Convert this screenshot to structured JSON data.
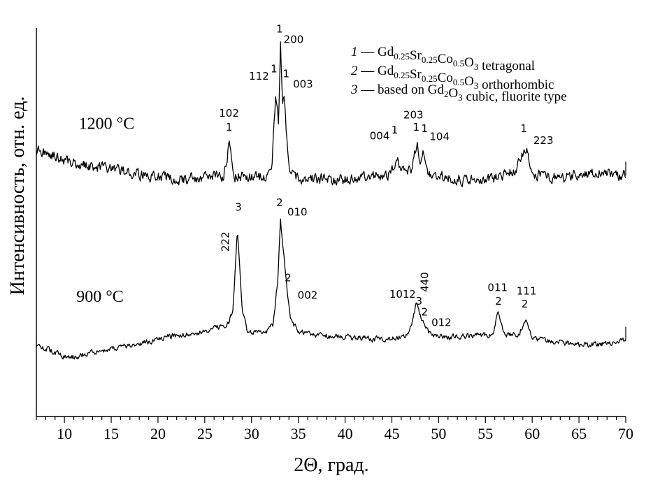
{
  "chart_data": {
    "type": "line",
    "xlabel": "2Θ, град.",
    "ylabel": "Интенсивность, отн. ед.",
    "xlim": [
      7,
      70
    ],
    "ylim": [
      0,
      100
    ],
    "x_ticks": [
      10,
      15,
      20,
      25,
      30,
      35,
      40,
      45,
      50,
      55,
      60,
      65,
      70
    ],
    "grid": false,
    "legend_position": "top-right",
    "legend": [
      {
        "num": "1",
        "dash": "—",
        "formula": [
          "Gd",
          "0.25",
          "Sr",
          "0.25",
          "Co",
          "0.5",
          "O",
          "3"
        ],
        "suffix": "tetragonal"
      },
      {
        "num": "2",
        "dash": "—",
        "formula": [
          "Gd",
          "0.25",
          "Sr",
          "0.25",
          "Co",
          "0.5",
          "O",
          "3"
        ],
        "suffix": "orthorhombic"
      },
      {
        "num": "3",
        "dash": "—",
        "prefix": "based on",
        "formula": [
          "Gd",
          "2",
          "O",
          "3"
        ],
        "suffix": "cubic, fluorite type"
      }
    ],
    "series": [
      {
        "name": "1200 °C",
        "baseline": 61.5,
        "noise_amplitude": 2.2,
        "x": [
          7,
          8.5,
          10,
          12.5,
          15,
          17.5,
          20,
          22.5,
          25,
          27,
          27.6,
          28.2,
          30,
          31.5,
          32.2,
          32.6,
          32.9,
          33.1,
          33.3,
          33.5,
          33.7,
          34,
          34.6,
          36,
          38,
          40,
          42,
          44,
          45,
          45.5,
          46,
          47,
          47.7,
          48,
          48.3,
          48.7,
          49.5,
          51,
          53,
          55,
          57,
          58.2,
          58.8,
          59.4,
          60,
          61,
          63,
          65,
          67,
          68,
          69,
          70
        ],
        "y": [
          68.5,
          67.5,
          66,
          64.5,
          63.5,
          62.5,
          61.5,
          61,
          61.5,
          62,
          70,
          62,
          61.5,
          62,
          65,
          83,
          75,
          95.5,
          80,
          84,
          73,
          64,
          61.5,
          61,
          61,
          61,
          61.5,
          62,
          63,
          67,
          63,
          63,
          70,
          64,
          68.5,
          63,
          62,
          61.5,
          61,
          61,
          62,
          63.5,
          67,
          69,
          62.5,
          62,
          61.5,
          62,
          63,
          62.5,
          62,
          62
        ]
      },
      {
        "name": "900 °C",
        "baseline": 18.5,
        "noise_amplitude": 1.1,
        "x": [
          7,
          9,
          10.5,
          12,
          15,
          18,
          20,
          22,
          24,
          26,
          27.5,
          28,
          28.5,
          29,
          29.6,
          30.5,
          31.5,
          32.3,
          32.8,
          33.1,
          33.5,
          33.8,
          34.2,
          35,
          37,
          40,
          43,
          45,
          46.5,
          47.3,
          47.6,
          48,
          48.3,
          48.6,
          49,
          50,
          52,
          54,
          55.8,
          56.4,
          57,
          58.5,
          59.3,
          60,
          61,
          63,
          65,
          67,
          69,
          70
        ],
        "y": [
          18.5,
          16.5,
          15,
          16,
          17.5,
          18.5,
          20,
          21,
          21.5,
          22.5,
          24,
          27,
          48,
          27,
          21.5,
          21.5,
          21.5,
          23.5,
          35,
          50,
          40,
          32,
          25,
          22,
          21,
          20.5,
          20,
          20,
          20.5,
          25,
          29.5,
          26,
          24.5,
          23,
          21.5,
          20.5,
          20.5,
          21,
          21,
          27,
          21,
          21,
          25,
          20,
          19.5,
          19,
          18.5,
          18.5,
          19,
          19.5
        ]
      }
    ],
    "annotations": [
      {
        "text": "1200 °C",
        "x": 14.5,
        "y": 74
      },
      {
        "text": "900 °C",
        "x": 13.8,
        "y": 29.5
      },
      {
        "text": "102",
        "x": 27.6,
        "y": 77.2
      },
      {
        "text": "1",
        "x": 27.6,
        "y": 73.6
      },
      {
        "text": "112",
        "x": 30.8,
        "y": 86.7
      },
      {
        "text": "1",
        "x": 32.4,
        "y": 88.6
      },
      {
        "text": "1",
        "x": 33.0,
        "y": 98.8
      },
      {
        "text": "200",
        "x": 34.5,
        "y": 96.1
      },
      {
        "text": "1",
        "x": 33.7,
        "y": 87.3
      },
      {
        "text": "003",
        "x": 35.5,
        "y": 84.6
      },
      {
        "text": "004",
        "x": 43.7,
        "y": 71.3
      },
      {
        "text": "1",
        "x": 45.3,
        "y": 72.8
      },
      {
        "text": "203",
        "x": 47.3,
        "y": 76.7
      },
      {
        "text": "1",
        "x": 47.6,
        "y": 73.6
      },
      {
        "text": "1",
        "x": 48.5,
        "y": 73.2
      },
      {
        "text": "104",
        "x": 50.1,
        "y": 71.1
      },
      {
        "text": "1",
        "x": 59.1,
        "y": 73.2
      },
      {
        "text": "223",
        "x": 61.2,
        "y": 70.1
      },
      {
        "text": "3",
        "x": 28.6,
        "y": 53.0
      },
      {
        "text": "222",
        "x": 27.6,
        "y": 45.0
      },
      {
        "text": "2",
        "x": 33.0,
        "y": 54.1
      },
      {
        "text": "010",
        "x": 34.9,
        "y": 51.7
      },
      {
        "text": "2",
        "x": 33.9,
        "y": 34.8
      },
      {
        "text": "002",
        "x": 36.0,
        "y": 30.3
      },
      {
        "text": "101",
        "x": 45.8,
        "y": 30.6
      },
      {
        "text": "2",
        "x": 47.2,
        "y": 30.6
      },
      {
        "text": "3",
        "x": 47.9,
        "y": 28.8
      },
      {
        "text": "440",
        "x": 48.9,
        "y": 34.6
      },
      {
        "text": "2",
        "x": 48.5,
        "y": 26.0
      },
      {
        "text": "012",
        "x": 50.3,
        "y": 23.3
      },
      {
        "text": "011",
        "x": 56.3,
        "y": 32.3
      },
      {
        "text": "2",
        "x": 56.4,
        "y": 28.8
      },
      {
        "text": "111",
        "x": 59.4,
        "y": 31.4
      },
      {
        "text": "2",
        "x": 59.2,
        "y": 28.1
      }
    ]
  }
}
